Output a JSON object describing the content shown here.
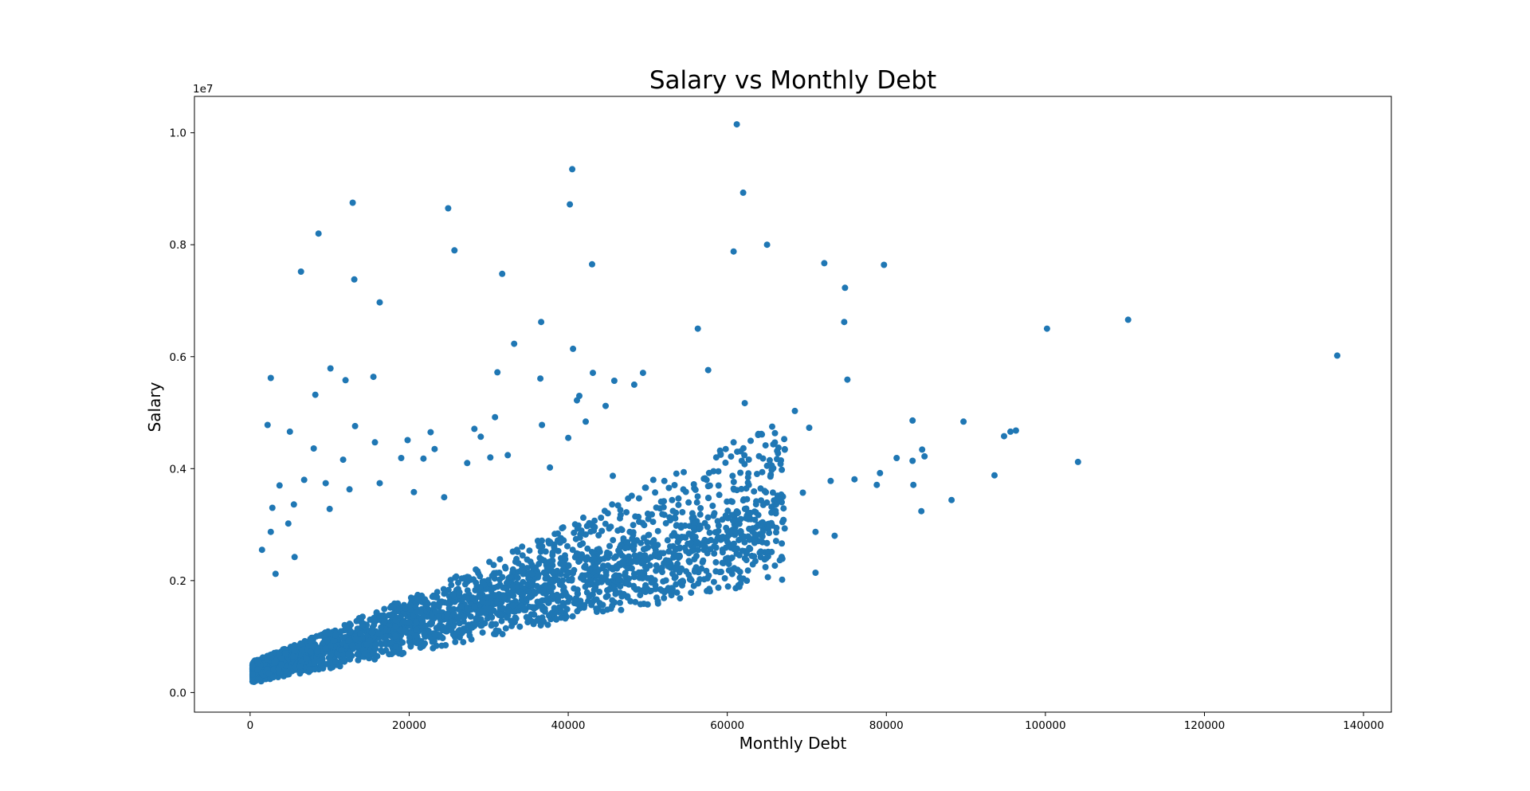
{
  "chart_data": {
    "type": "scatter",
    "title": "Salary vs Monthly Debt",
    "xlabel": "Monthly Debt",
    "ylabel": "Salary",
    "y_offset_label": "1e7",
    "xlim": [
      -7000,
      143500
    ],
    "ylim": [
      -350000,
      10650000
    ],
    "x_ticks": [
      0,
      20000,
      40000,
      60000,
      80000,
      100000,
      120000,
      140000
    ],
    "x_tick_labels": [
      "0",
      "20000",
      "40000",
      "60000",
      "80000",
      "100000",
      "120000",
      "140000"
    ],
    "y_ticks": [
      0,
      2000000,
      4000000,
      6000000,
      8000000,
      10000000
    ],
    "y_tick_labels": [
      "0.0",
      "0.2",
      "0.4",
      "0.6",
      "0.8",
      "1.0"
    ],
    "grid": false,
    "marker_color": "#1f77b4",
    "series": [
      {
        "name": "Salary",
        "points": [
          [
            61200,
            10150000
          ],
          [
            40500,
            9350000
          ],
          [
            62000,
            8930000
          ],
          [
            12900,
            8750000
          ],
          [
            24900,
            8650000
          ],
          [
            40200,
            8720000
          ],
          [
            8600,
            8200000
          ],
          [
            65000,
            8000000
          ],
          [
            25700,
            7900000
          ],
          [
            60800,
            7880000
          ],
          [
            72200,
            7670000
          ],
          [
            79700,
            7640000
          ],
          [
            43000,
            7650000
          ],
          [
            6400,
            7520000
          ],
          [
            31700,
            7480000
          ],
          [
            13100,
            7380000
          ],
          [
            74800,
            7230000
          ],
          [
            16300,
            6970000
          ],
          [
            110400,
            6660000
          ],
          [
            36600,
            6620000
          ],
          [
            74700,
            6620000
          ],
          [
            56300,
            6500000
          ],
          [
            100200,
            6500000
          ],
          [
            33200,
            6230000
          ],
          [
            40600,
            6140000
          ],
          [
            136700,
            6020000
          ],
          [
            10100,
            5790000
          ],
          [
            57600,
            5760000
          ],
          [
            31100,
            5720000
          ],
          [
            43100,
            5710000
          ],
          [
            49400,
            5710000
          ],
          [
            2600,
            5620000
          ],
          [
            12000,
            5580000
          ],
          [
            15500,
            5640000
          ],
          [
            36500,
            5610000
          ],
          [
            75100,
            5590000
          ],
          [
            45800,
            5570000
          ],
          [
            48300,
            5500000
          ],
          [
            8200,
            5320000
          ],
          [
            41400,
            5300000
          ],
          [
            41100,
            5220000
          ],
          [
            62200,
            5170000
          ],
          [
            44700,
            5120000
          ],
          [
            68500,
            5030000
          ],
          [
            30800,
            4920000
          ],
          [
            83300,
            4860000
          ],
          [
            89700,
            4840000
          ],
          [
            2200,
            4780000
          ],
          [
            13200,
            4760000
          ],
          [
            42200,
            4840000
          ],
          [
            70300,
            4730000
          ],
          [
            96300,
            4680000
          ],
          [
            95600,
            4660000
          ],
          [
            5000,
            4660000
          ],
          [
            28200,
            4710000
          ],
          [
            94800,
            4580000
          ],
          [
            22700,
            4650000
          ],
          [
            29000,
            4570000
          ],
          [
            36700,
            4780000
          ],
          [
            40000,
            4550000
          ],
          [
            60800,
            4470000
          ],
          [
            19800,
            4510000
          ],
          [
            59800,
            4350000
          ],
          [
            84500,
            4340000
          ],
          [
            104100,
            4120000
          ],
          [
            93600,
            3880000
          ],
          [
            81300,
            4190000
          ],
          [
            83300,
            4140000
          ],
          [
            84800,
            4220000
          ],
          [
            65000,
            4050000
          ],
          [
            79200,
            3920000
          ],
          [
            76000,
            3810000
          ],
          [
            73000,
            3780000
          ],
          [
            78800,
            3710000
          ],
          [
            83400,
            3710000
          ],
          [
            69500,
            3570000
          ],
          [
            88200,
            3440000
          ],
          [
            84400,
            3240000
          ],
          [
            71100,
            2870000
          ],
          [
            73500,
            2800000
          ],
          [
            64800,
            2240000
          ],
          [
            65100,
            2060000
          ],
          [
            71100,
            2140000
          ],
          [
            62600,
            2180000
          ],
          [
            15700,
            4470000
          ],
          [
            23200,
            4350000
          ],
          [
            27300,
            4100000
          ],
          [
            19000,
            4190000
          ],
          [
            32400,
            4240000
          ],
          [
            37700,
            4020000
          ],
          [
            30200,
            4200000
          ],
          [
            8000,
            4360000
          ],
          [
            11700,
            4160000
          ],
          [
            3700,
            3700000
          ],
          [
            6800,
            3800000
          ],
          [
            9500,
            3740000
          ],
          [
            12500,
            3630000
          ],
          [
            16300,
            3740000
          ],
          [
            20600,
            3580000
          ],
          [
            24400,
            3490000
          ],
          [
            48900,
            3470000
          ],
          [
            52000,
            3310000
          ],
          [
            56600,
            3180000
          ],
          [
            59800,
            3160000
          ],
          [
            61700,
            3100000
          ],
          [
            5500,
            3360000
          ],
          [
            10000,
            3280000
          ],
          [
            2800,
            3300000
          ],
          [
            4800,
            3020000
          ],
          [
            21800,
            4180000
          ],
          [
            45600,
            3870000
          ],
          [
            50700,
            3800000
          ],
          [
            53600,
            3910000
          ],
          [
            55800,
            3720000
          ],
          [
            57400,
            3800000
          ],
          [
            62600,
            3750000
          ],
          [
            64700,
            3600000
          ],
          [
            67000,
            3500000
          ],
          [
            66500,
            3450000
          ],
          [
            3200,
            2120000
          ],
          [
            5600,
            2420000
          ],
          [
            1500,
            2550000
          ],
          [
            2600,
            2870000
          ]
        ],
        "trend_band": {
          "description": "dense cluster of several thousand points concentrated along salary ≈ 40·debt + 0.4e6, spreading wider as debt grows",
          "x_range": [
            0,
            67000
          ],
          "y_min_approx": [
            150000,
            2000000
          ],
          "y_max_approx": [
            2500000,
            3500000
          ]
        }
      }
    ]
  }
}
